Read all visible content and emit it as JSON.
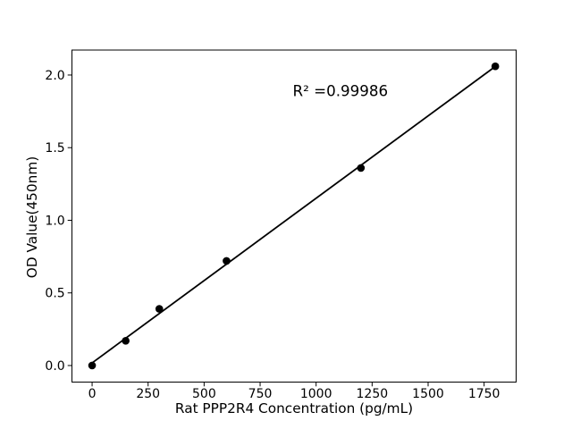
{
  "chart_data": {
    "type": "scatter",
    "title": "",
    "xlabel": "Rat PPP2R4 Concentration (pg/mL)",
    "ylabel": "OD Value(450nm)",
    "annotation": "R² =0.99986",
    "x": [
      0,
      150,
      300,
      600,
      1200,
      1800
    ],
    "y": [
      0.0,
      0.17,
      0.39,
      0.72,
      1.36,
      2.06
    ],
    "fit_line": {
      "x": [
        0,
        1800
      ],
      "y": [
        0.018,
        2.059
      ]
    },
    "xlim": [
      -90,
      1893
    ],
    "ylim": [
      -0.114,
      2.172
    ],
    "x_tick_values": [
      0,
      250,
      500,
      750,
      1000,
      1250,
      1500,
      1750
    ],
    "x_tick_labels": [
      "0",
      "250",
      "500",
      "750",
      "1000",
      "1250",
      "1500",
      "1750"
    ],
    "y_tick_values": [
      0.0,
      0.5,
      1.0,
      1.5,
      2.0
    ],
    "y_tick_labels": [
      "0.0",
      "0.5",
      "1.0",
      "1.5",
      "2.0"
    ],
    "grid": false,
    "legend_position": "none",
    "colors": {
      "background": "#ffffff",
      "frame": "#000000",
      "marker": "#000000",
      "line": "#000000",
      "text": "#000000"
    }
  }
}
